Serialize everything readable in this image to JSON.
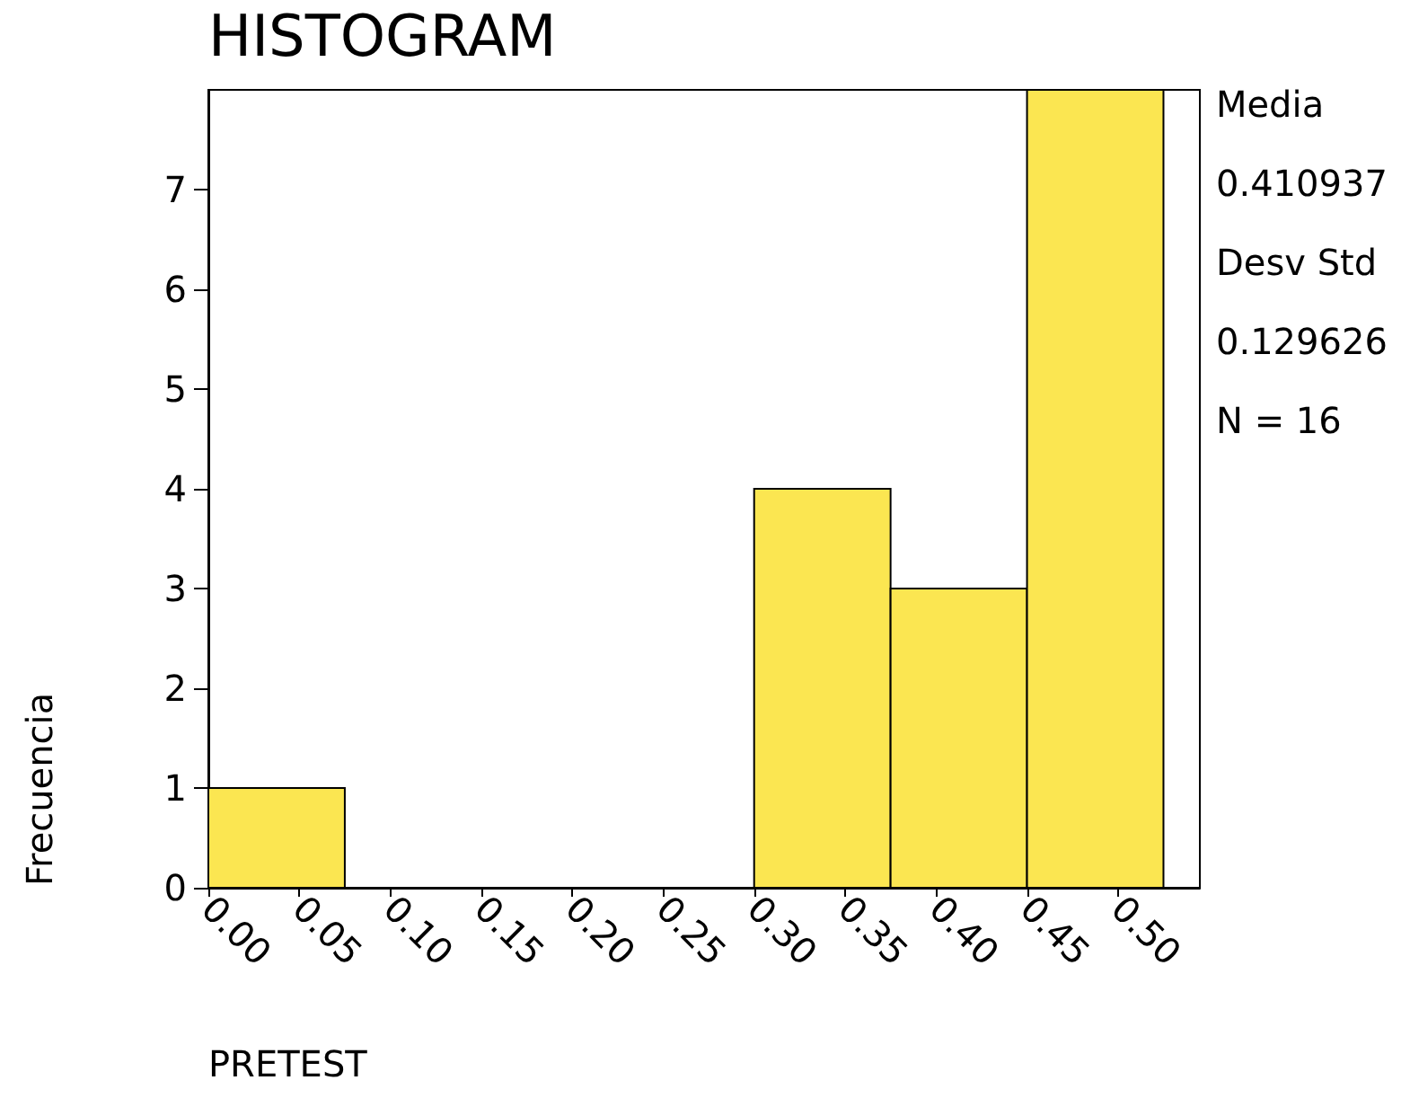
{
  "chart_data": {
    "type": "histogram",
    "title": "HISTOGRAM",
    "xlabel": "PRETEST",
    "ylabel": "Frecuencia",
    "bins": [
      0,
      0.075,
      0.15,
      0.225,
      0.3,
      0.375,
      0.45,
      0.525
    ],
    "values": [
      1,
      0,
      0,
      0,
      4,
      3,
      8
    ],
    "color": "#fbe651",
    "xlim": [
      0,
      0.545
    ],
    "xticks": [
      {
        "value": 0,
        "label": "0.00"
      },
      {
        "value": 0.05,
        "label": "0.05"
      },
      {
        "value": 0.1,
        "label": "0.10"
      },
      {
        "value": 0.15,
        "label": "0.15"
      },
      {
        "value": 0.2,
        "label": "0.20"
      },
      {
        "value": 0.25,
        "label": "0.25"
      },
      {
        "value": 0.3,
        "label": "0.30"
      },
      {
        "value": 0.35,
        "label": "0.35"
      },
      {
        "value": 0.4,
        "label": "0.40"
      },
      {
        "value": 0.45,
        "label": "0.45"
      },
      {
        "value": 0.5,
        "label": "0.50"
      }
    ],
    "ylim": [
      0,
      8
    ],
    "yticks": [
      0,
      1,
      2,
      3,
      4,
      5,
      6,
      7
    ],
    "annotations": [
      "Media",
      "0.410937",
      "Desv Std",
      "0.129626",
      "N = 16"
    ],
    "grid": false
  }
}
